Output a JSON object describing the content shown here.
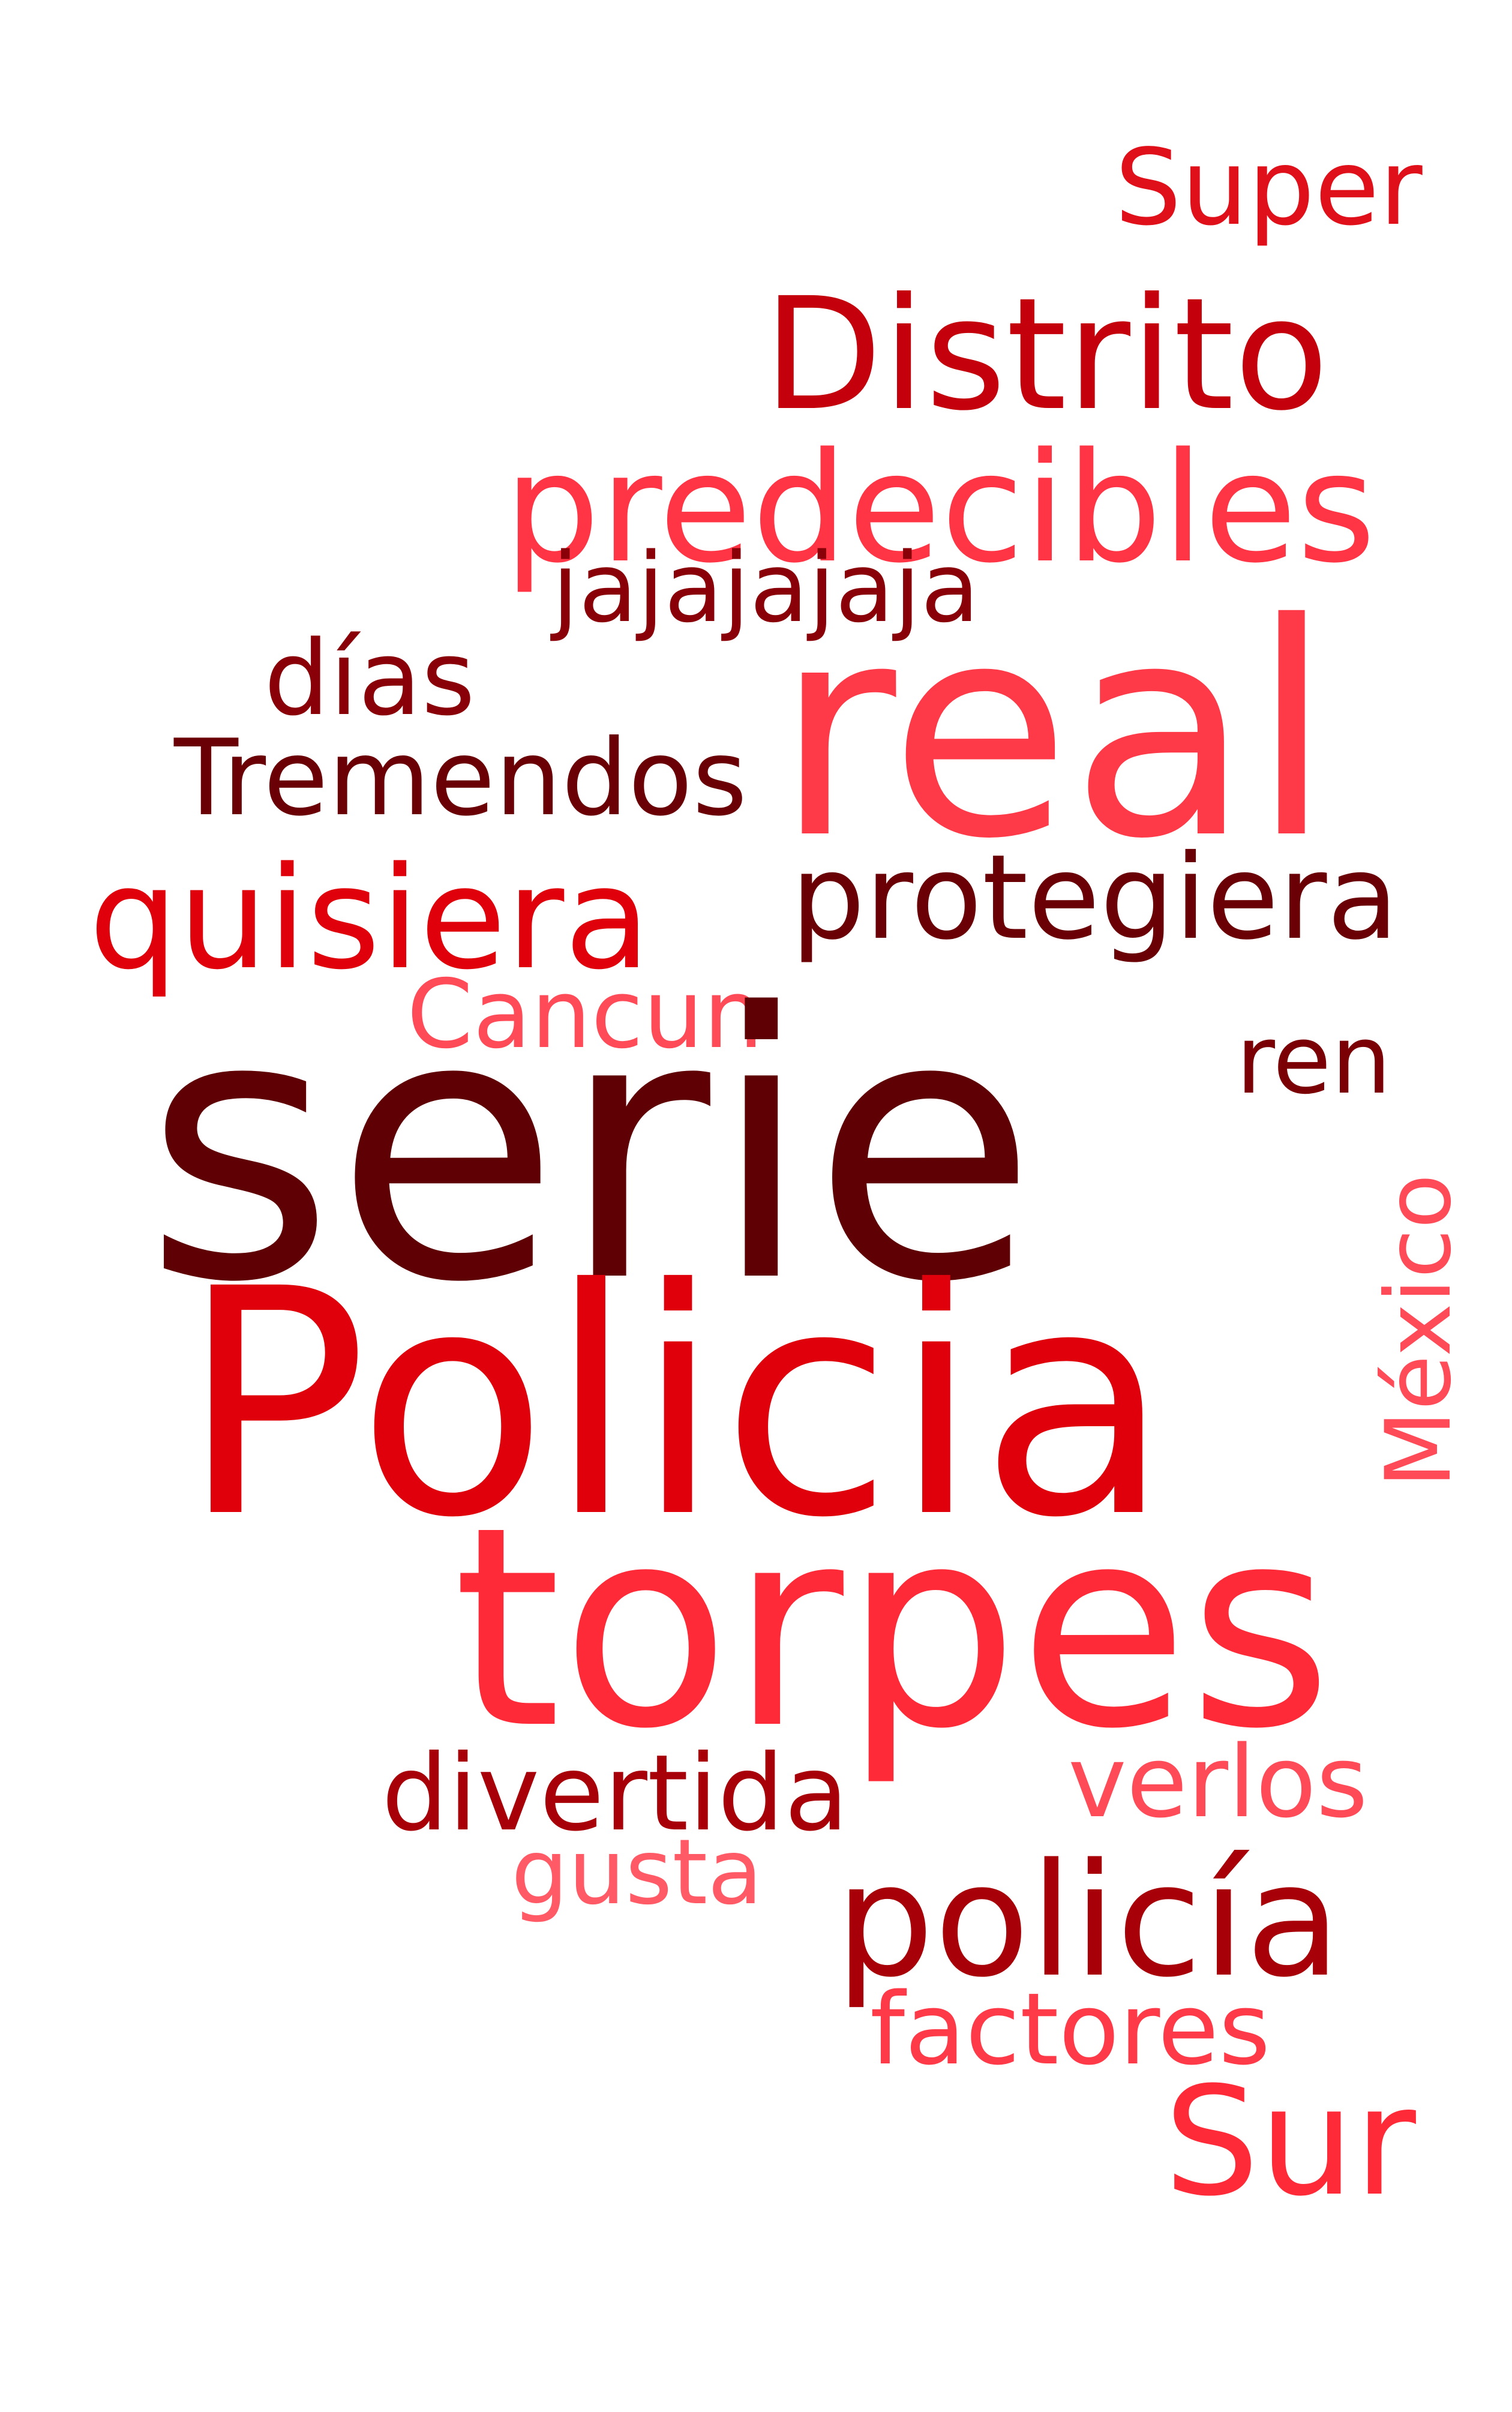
{
  "words": [
    {
      "id": "super",
      "text": "Super",
      "color": "#e0101a"
    },
    {
      "id": "distrito",
      "text": "Distrito",
      "color": "#c4000c"
    },
    {
      "id": "predecibles",
      "text": "predecibles",
      "color": "#ff3545"
    },
    {
      "id": "jajajajaja",
      "text": "jajajajaja",
      "color": "#8a0008"
    },
    {
      "id": "real",
      "text": "real",
      "color": "#ff3a48"
    },
    {
      "id": "dias",
      "text": "días",
      "color": "#8a0008"
    },
    {
      "id": "tremendos",
      "text": "Tremendos",
      "color": "#6a0006"
    },
    {
      "id": "quisiera",
      "text": "quisiera",
      "color": "#e0000c"
    },
    {
      "id": "protegiera",
      "text": "protegiera",
      "color": "#6a0006"
    },
    {
      "id": "cancun",
      "text": "Cancun",
      "color": "#ff4a58"
    },
    {
      "id": "ren",
      "text": "ren",
      "color": "#7a0006"
    },
    {
      "id": "serie",
      "text": "serie",
      "color": "#5e0004"
    },
    {
      "id": "mexico",
      "text": "México",
      "color": "#ff4a58"
    },
    {
      "id": "policia-cap",
      "text": "Policia",
      "color": "#e0000c"
    },
    {
      "id": "torpes",
      "text": "torpes",
      "color": "#ff2a38"
    },
    {
      "id": "divertida",
      "text": "divertida",
      "color": "#a80008"
    },
    {
      "id": "verlos",
      "text": "verlos",
      "color": "#ff4a58"
    },
    {
      "id": "gusta",
      "text": "gusta",
      "color": "#ff5a66"
    },
    {
      "id": "policia-lower",
      "text": "policía",
      "color": "#a80008"
    },
    {
      "id": "factores",
      "text": "factores",
      "color": "#ff3a48"
    },
    {
      "id": "sur",
      "text": "Sur",
      "color": "#ff2a38"
    }
  ]
}
